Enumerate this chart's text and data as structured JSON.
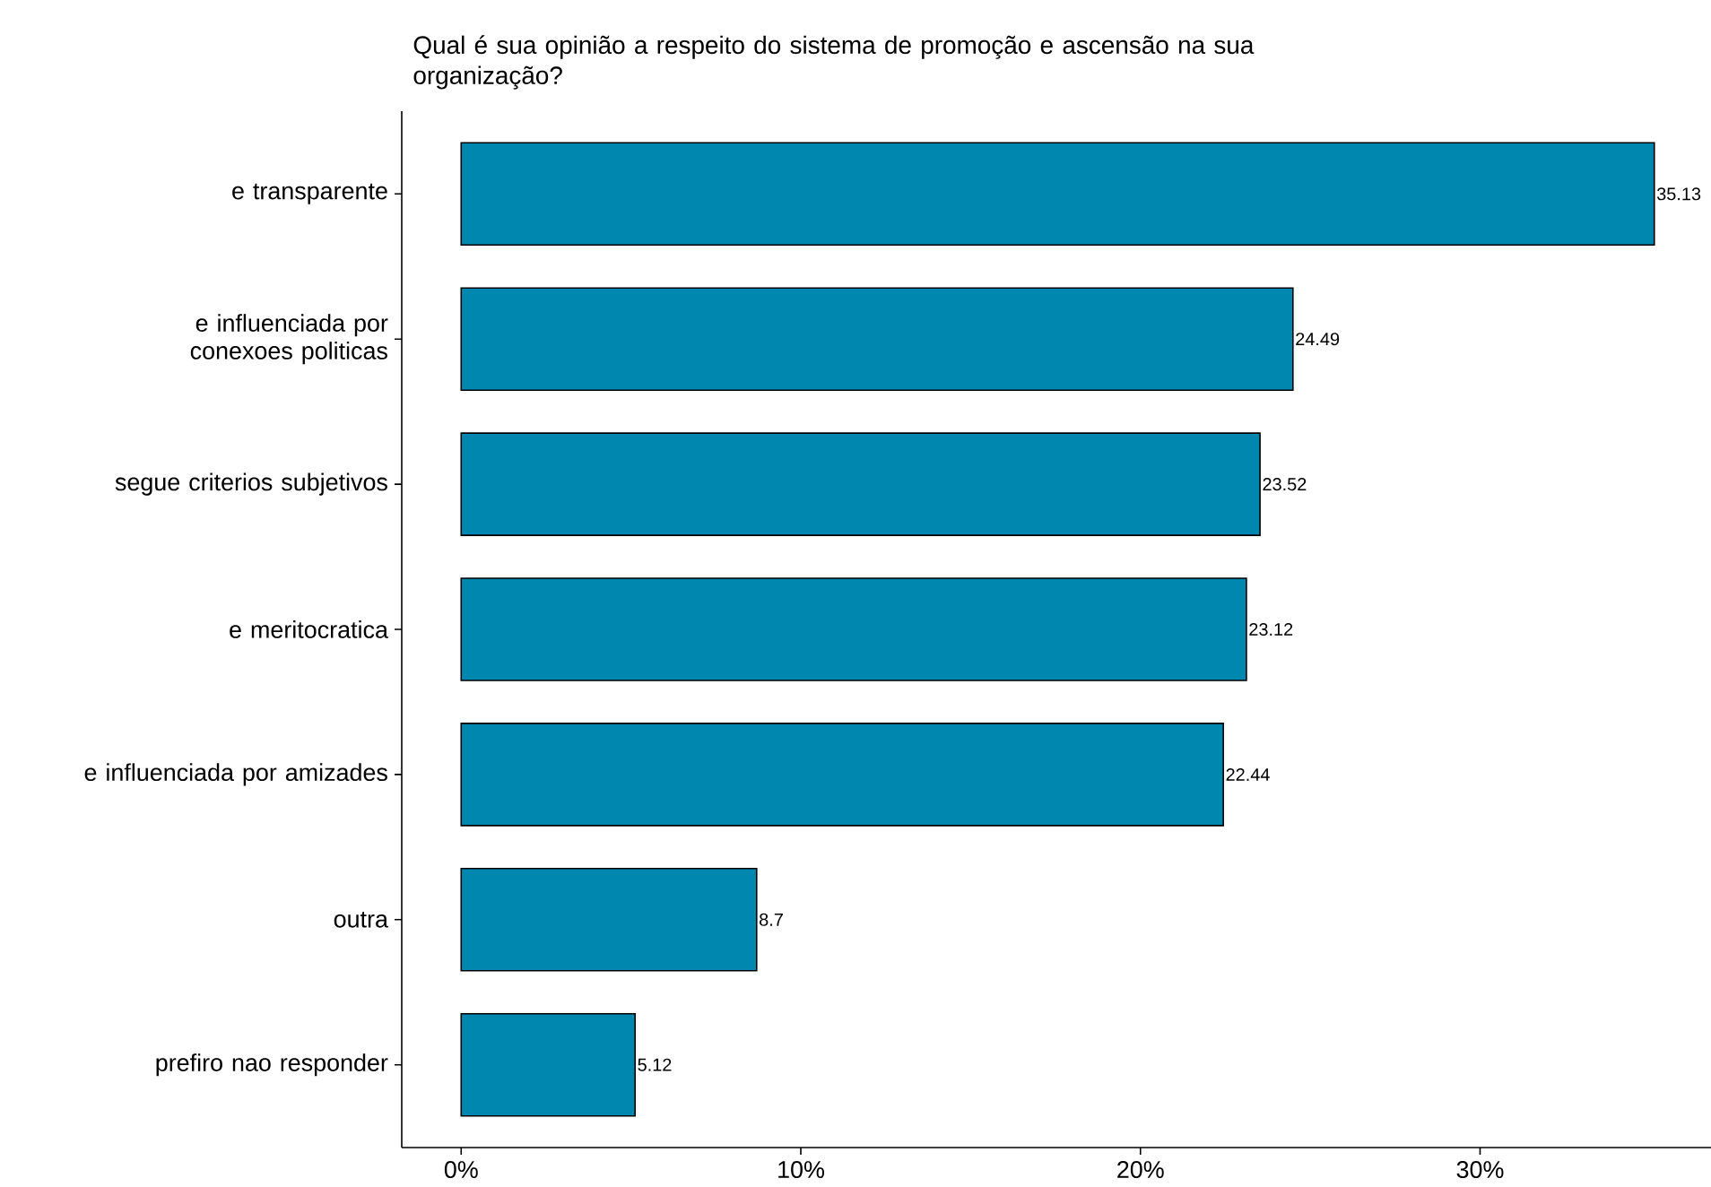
{
  "chart_data": {
    "type": "bar",
    "orientation": "horizontal",
    "title": "Qual é sua opinião a respeito do sistema de promoção e ascensão na sua organização?",
    "categories": [
      "e transparente",
      "e influenciada por conexoes politicas",
      "segue criterios subjetivos",
      "e meritocratica",
      "e influenciada por amizades",
      "outra",
      "prefiro nao responder"
    ],
    "values": [
      35.13,
      24.49,
      23.52,
      23.12,
      22.44,
      8.7,
      5.12
    ],
    "color": "#0087b0",
    "data_labels": true,
    "grid": false,
    "xlim": [
      -1.75,
      36.8
    ],
    "xticks": [
      {
        "value": 0,
        "label": "0%"
      },
      {
        "value": 10,
        "label": "10%"
      },
      {
        "value": 20,
        "label": "20%"
      },
      {
        "value": 30,
        "label": "30%"
      }
    ]
  }
}
